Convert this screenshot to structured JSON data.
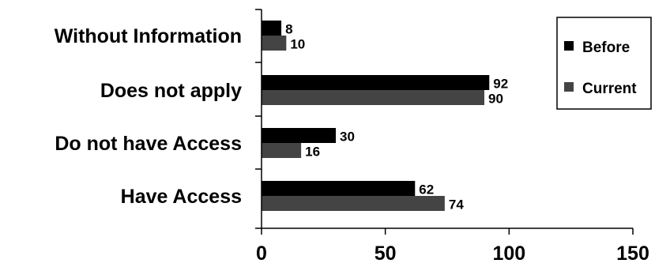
{
  "chart_data": {
    "type": "bar",
    "orientation": "horizontal",
    "categories": [
      "Without Information",
      "Does not apply",
      "Do not have Access",
      "Have Access"
    ],
    "series": [
      {
        "name": "Before",
        "values": [
          8,
          92,
          30,
          62
        ],
        "color": "#000000"
      },
      {
        "name": "Current",
        "values": [
          10,
          90,
          16,
          74
        ],
        "color": "#444444"
      }
    ],
    "x_ticks": [
      0,
      50,
      100,
      150
    ],
    "xlim": [
      0,
      150
    ],
    "title": "",
    "xlabel": "",
    "ylabel": "",
    "legend_position": "top-right",
    "grid": false
  }
}
